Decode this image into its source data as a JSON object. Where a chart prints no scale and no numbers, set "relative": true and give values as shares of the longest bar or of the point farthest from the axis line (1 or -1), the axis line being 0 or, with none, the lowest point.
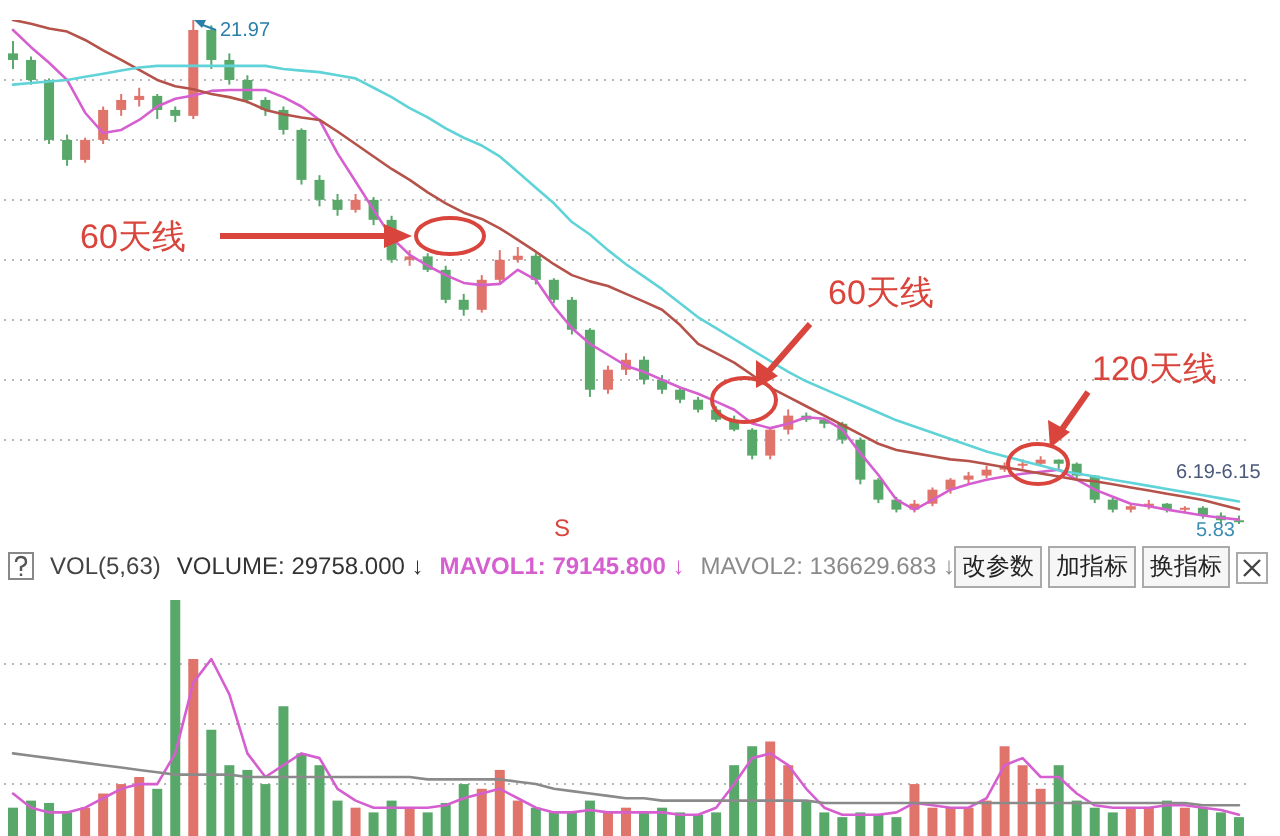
{
  "chart_data": [
    {
      "type": "candlestick",
      "grid": "y",
      "categories": [
        null,
        null,
        null,
        null,
        null,
        null,
        null,
        null,
        null,
        null,
        null,
        null,
        null,
        null,
        null,
        null,
        null,
        null,
        null,
        null,
        null,
        null,
        null,
        null,
        null,
        null,
        null,
        null,
        null,
        null,
        null,
        null,
        null,
        null,
        null,
        null,
        null,
        null,
        null,
        null,
        null,
        null,
        null,
        null,
        null,
        null,
        null,
        null,
        null,
        null,
        null,
        null,
        null,
        null,
        null,
        null,
        null,
        null,
        null,
        null,
        null,
        null,
        null,
        null,
        null,
        null,
        null,
        null,
        null
      ],
      "ohlc": [
        [
          20.9,
          21.3,
          20.4,
          20.69
        ],
        [
          20.69,
          20.8,
          19.9,
          20.05
        ],
        [
          20.05,
          20.1,
          18.0,
          18.13
        ],
        [
          18.13,
          18.3,
          17.3,
          17.49
        ],
        [
          17.49,
          18.2,
          17.4,
          18.13
        ],
        [
          18.13,
          19.2,
          18.0,
          19.09
        ],
        [
          19.09,
          19.6,
          18.9,
          19.41
        ],
        [
          19.41,
          19.8,
          19.2,
          19.54
        ],
        [
          19.54,
          19.6,
          18.8,
          19.09
        ],
        [
          19.09,
          19.2,
          18.7,
          18.9
        ],
        [
          18.9,
          21.97,
          18.8,
          21.65
        ],
        [
          21.65,
          21.8,
          20.4,
          20.69
        ],
        [
          20.69,
          20.9,
          19.9,
          20.05
        ],
        [
          20.05,
          20.2,
          19.3,
          19.41
        ],
        [
          19.41,
          19.5,
          18.9,
          19.09
        ],
        [
          19.09,
          19.2,
          18.3,
          18.45
        ],
        [
          18.45,
          18.5,
          16.7,
          16.85
        ],
        [
          16.85,
          17.0,
          16.0,
          16.21
        ],
        [
          16.21,
          16.4,
          15.7,
          15.89
        ],
        [
          15.89,
          16.4,
          15.8,
          16.21
        ],
        [
          16.21,
          16.3,
          15.4,
          15.57
        ],
        [
          15.57,
          15.7,
          14.2,
          14.29
        ],
        [
          14.29,
          14.6,
          14.1,
          14.4
        ],
        [
          14.4,
          14.5,
          13.9,
          13.97
        ],
        [
          13.97,
          14.1,
          12.9,
          13.01
        ],
        [
          13.01,
          13.2,
          12.5,
          12.69
        ],
        [
          12.69,
          13.8,
          12.6,
          13.65
        ],
        [
          13.65,
          14.6,
          13.5,
          14.29
        ],
        [
          14.29,
          14.7,
          14.2,
          14.42
        ],
        [
          14.42,
          14.5,
          13.5,
          13.65
        ],
        [
          13.65,
          13.7,
          12.9,
          13.01
        ],
        [
          13.01,
          13.1,
          11.9,
          12.05
        ],
        [
          12.05,
          12.1,
          9.9,
          10.13
        ],
        [
          10.13,
          10.9,
          10.0,
          10.77
        ],
        [
          10.77,
          11.3,
          10.6,
          11.09
        ],
        [
          11.09,
          11.2,
          10.3,
          10.45
        ],
        [
          10.45,
          10.6,
          10.0,
          10.13
        ],
        [
          10.13,
          10.2,
          9.7,
          9.81
        ],
        [
          9.81,
          9.9,
          9.4,
          9.49
        ],
        [
          9.49,
          9.6,
          9.1,
          9.17
        ],
        [
          9.17,
          9.3,
          8.8,
          8.85
        ],
        [
          8.85,
          8.9,
          7.9,
          8.02
        ],
        [
          8.02,
          8.9,
          7.9,
          8.85
        ],
        [
          8.85,
          9.5,
          8.7,
          9.3
        ],
        [
          9.3,
          9.4,
          9.1,
          9.17
        ],
        [
          9.17,
          9.2,
          8.9,
          9.04
        ],
        [
          9.04,
          9.1,
          8.4,
          8.53
        ],
        [
          8.53,
          8.6,
          7.1,
          7.25
        ],
        [
          7.25,
          7.3,
          6.5,
          6.61
        ],
        [
          6.61,
          6.7,
          6.2,
          6.29
        ],
        [
          6.29,
          6.6,
          6.2,
          6.48
        ],
        [
          6.48,
          7.0,
          6.4,
          6.93
        ],
        [
          6.93,
          7.3,
          6.8,
          7.25
        ],
        [
          7.25,
          7.5,
          7.1,
          7.38
        ],
        [
          7.38,
          7.7,
          7.3,
          7.57
        ],
        [
          7.57,
          7.8,
          7.5,
          7.7
        ],
        [
          7.7,
          7.9,
          7.6,
          7.76
        ],
        [
          7.76,
          8.0,
          7.7,
          7.89
        ],
        [
          7.89,
          7.9,
          7.6,
          7.76
        ],
        [
          7.76,
          7.8,
          7.3,
          7.38
        ],
        [
          7.38,
          7.4,
          6.5,
          6.61
        ],
        [
          6.61,
          6.7,
          6.2,
          6.29
        ],
        [
          6.29,
          6.5,
          6.2,
          6.4
        ],
        [
          6.4,
          6.6,
          6.3,
          6.48
        ],
        [
          6.48,
          6.5,
          6.2,
          6.29
        ],
        [
          6.29,
          6.4,
          6.2,
          6.35
        ],
        [
          6.35,
          6.4,
          6.0,
          6.1
        ],
        [
          6.1,
          6.2,
          5.85,
          5.95
        ],
        [
          5.95,
          6.1,
          5.83,
          5.9
        ]
      ],
      "colors": [
        "#58a86a",
        "#58a86a",
        "#58a86a",
        "#58a86a",
        "#e0736a",
        "#e0736a",
        "#e0736a",
        "#e0736a",
        "#58a86a",
        "#58a86a",
        "#e0736a",
        "#58a86a",
        "#58a86a",
        "#58a86a",
        "#58a86a",
        "#58a86a",
        "#58a86a",
        "#58a86a",
        "#58a86a",
        "#e0736a",
        "#58a86a",
        "#58a86a",
        "#e0736a",
        "#58a86a",
        "#58a86a",
        "#58a86a",
        "#e0736a",
        "#e0736a",
        "#e0736a",
        "#58a86a",
        "#58a86a",
        "#58a86a",
        "#58a86a",
        "#e0736a",
        "#e0736a",
        "#58a86a",
        "#58a86a",
        "#58a86a",
        "#58a86a",
        "#58a86a",
        "#58a86a",
        "#58a86a",
        "#e0736a",
        "#e0736a",
        "#58a86a",
        "#58a86a",
        "#58a86a",
        "#58a86a",
        "#58a86a",
        "#58a86a",
        "#e0736a",
        "#e0736a",
        "#e0736a",
        "#e0736a",
        "#e0736a",
        "#e0736a",
        "#e0736a",
        "#e0736a",
        "#58a86a",
        "#58a86a",
        "#58a86a",
        "#58a86a",
        "#e0736a",
        "#e0736a",
        "#58a86a",
        "#e0736a",
        "#58a86a",
        "#58a86a",
        "#58a86a"
      ],
      "series": [
        {
          "type": "line",
          "color": "#d65fd0",
          "values": [
            21.65,
            21.1,
            20.6,
            20.05,
            19.0,
            18.35,
            18.45,
            18.77,
            19.2,
            19.45,
            19.55,
            19.7,
            19.73,
            19.73,
            19.73,
            19.5,
            19.2,
            18.77,
            17.7,
            16.8,
            15.89,
            15.0,
            14.45,
            14.1,
            13.8,
            13.55,
            13.48,
            13.52,
            13.97,
            13.65,
            12.8,
            12.1,
            11.6,
            11.25,
            10.9,
            10.7,
            10.45,
            10.2,
            10.0,
            9.75,
            9.49,
            9.05,
            8.9,
            9.04,
            9.25,
            9.2,
            8.85,
            8.1,
            7.4,
            6.61,
            6.29,
            6.6,
            6.93,
            7.1,
            7.25,
            7.35,
            7.44,
            7.5,
            7.57,
            7.25,
            6.93,
            6.7,
            6.48,
            6.4,
            6.29,
            6.2,
            6.1,
            6.03,
            5.97
          ]
        },
        {
          "type": "line",
          "color": "#b5524a",
          "values": [
            21.97,
            21.85,
            21.7,
            21.6,
            21.33,
            21.0,
            20.69,
            20.37,
            20.05,
            19.85,
            19.75,
            19.6,
            19.5,
            19.35,
            19.09,
            18.95,
            18.85,
            18.77,
            18.4,
            18.0,
            17.6,
            17.2,
            16.85,
            16.45,
            16.1,
            15.8,
            15.6,
            15.3,
            14.93,
            14.55,
            14.15,
            13.8,
            13.6,
            13.45,
            13.2,
            12.95,
            12.69,
            12.2,
            11.6,
            11.3,
            11.0,
            10.6,
            10.2,
            9.9,
            9.6,
            9.3,
            9.0,
            8.7,
            8.4,
            8.2,
            8.1,
            8.0,
            7.9,
            7.85,
            7.75,
            7.65,
            7.55,
            7.45,
            7.35,
            7.25,
            7.2,
            7.1,
            7.0,
            6.9,
            6.8,
            6.7,
            6.6,
            6.45,
            6.3
          ]
        },
        {
          "type": "line",
          "color": "#5fd3d8",
          "values": [
            19.9,
            19.95,
            20.0,
            20.05,
            20.15,
            20.25,
            20.35,
            20.45,
            20.5,
            20.5,
            20.5,
            20.5,
            20.5,
            20.5,
            20.5,
            20.4,
            20.35,
            20.3,
            20.2,
            20.1,
            19.8,
            19.5,
            19.15,
            18.85,
            18.5,
            18.2,
            17.95,
            17.6,
            17.1,
            16.6,
            16.1,
            15.5,
            15.1,
            14.6,
            14.15,
            13.75,
            13.35,
            12.9,
            12.45,
            12.1,
            11.75,
            11.4,
            11.05,
            10.7,
            10.4,
            10.15,
            9.9,
            9.65,
            9.4,
            9.15,
            8.95,
            8.75,
            8.55,
            8.35,
            8.15,
            8.0,
            7.85,
            7.7,
            7.55,
            7.45,
            7.35,
            7.25,
            7.15,
            7.05,
            6.95,
            6.85,
            6.75,
            6.65,
            6.55
          ]
        }
      ],
      "annotations": [
        "21.97",
        "5.83",
        "60天线",
        "60天线",
        "120天线",
        "6.19-6.15",
        "S"
      ]
    },
    {
      "type": "bar",
      "relative": true,
      "grid": "y",
      "title": "VOL(5,63)",
      "categories": [
        null,
        null,
        null,
        null,
        null,
        null,
        null,
        null,
        null,
        null,
        null,
        null,
        null,
        null,
        null,
        null,
        null,
        null,
        null,
        null,
        null,
        null,
        null,
        null,
        null,
        null,
        null,
        null,
        null,
        null,
        null,
        null,
        null,
        null,
        null,
        null,
        null,
        null,
        null,
        null,
        null,
        null,
        null,
        null,
        null,
        null,
        null,
        null,
        null,
        null,
        null,
        null,
        null,
        null,
        null,
        null,
        null,
        null,
        null,
        null,
        null,
        null,
        null,
        null,
        null,
        null,
        null,
        null,
        null
      ],
      "series": [
        {
          "type": "bar",
          "colors": [
            "#58a86a",
            "#58a86a",
            "#58a86a",
            "#58a86a",
            "#e0736a",
            "#e0736a",
            "#e0736a",
            "#e0736a",
            "#58a86a",
            "#58a86a",
            "#e0736a",
            "#58a86a",
            "#58a86a",
            "#58a86a",
            "#58a86a",
            "#58a86a",
            "#58a86a",
            "#58a86a",
            "#58a86a",
            "#e0736a",
            "#58a86a",
            "#58a86a",
            "#e0736a",
            "#58a86a",
            "#58a86a",
            "#58a86a",
            "#e0736a",
            "#e0736a",
            "#e0736a",
            "#58a86a",
            "#58a86a",
            "#58a86a",
            "#58a86a",
            "#e0736a",
            "#e0736a",
            "#58a86a",
            "#58a86a",
            "#58a86a",
            "#58a86a",
            "#58a86a",
            "#58a86a",
            "#58a86a",
            "#e0736a",
            "#e0736a",
            "#58a86a",
            "#58a86a",
            "#58a86a",
            "#58a86a",
            "#58a86a",
            "#58a86a",
            "#e0736a",
            "#e0736a",
            "#e0736a",
            "#e0736a",
            "#e0736a",
            "#e0736a",
            "#e0736a",
            "#e0736a",
            "#58a86a",
            "#58a86a",
            "#58a86a",
            "#58a86a",
            "#e0736a",
            "#e0736a",
            "#58a86a",
            "#e0736a",
            "#58a86a",
            "#58a86a",
            "#58a86a"
          ],
          "values": [
            0.12,
            0.15,
            0.14,
            0.1,
            0.12,
            0.18,
            0.22,
            0.25,
            0.2,
            1,
            0.75,
            0.45,
            0.3,
            0.28,
            0.22,
            0.55,
            0.35,
            0.3,
            0.15,
            0.12,
            0.1,
            0.15,
            0.12,
            0.1,
            0.14,
            0.22,
            0.2,
            0.28,
            0.15,
            0.12,
            0.1,
            0.1,
            0.15,
            0.1,
            0.12,
            0.1,
            0.12,
            0.1,
            0.09,
            0.1,
            0.3,
            0.38,
            0.4,
            0.3,
            0.15,
            0.1,
            0.08,
            0.1,
            0.09,
            0.08,
            0.22,
            0.12,
            0.12,
            0.12,
            0.15,
            0.38,
            0.3,
            0.2,
            0.3,
            0.15,
            0.12,
            0.1,
            0.12,
            0.12,
            0.15,
            0.12,
            0.12,
            0.1,
            0.08
          ]
        },
        {
          "type": "line",
          "color": "#d65fd0",
          "values": [
            0.18,
            0.12,
            0.1,
            0.1,
            0.12,
            0.16,
            0.2,
            0.22,
            0.22,
            0.35,
            0.65,
            0.75,
            0.6,
            0.35,
            0.25,
            0.3,
            0.35,
            0.33,
            0.2,
            0.15,
            0.12,
            0.12,
            0.12,
            0.12,
            0.13,
            0.16,
            0.18,
            0.2,
            0.16,
            0.12,
            0.1,
            0.1,
            0.11,
            0.1,
            0.1,
            0.1,
            0.1,
            0.09,
            0.09,
            0.12,
            0.22,
            0.33,
            0.35,
            0.3,
            0.2,
            0.12,
            0.09,
            0.09,
            0.09,
            0.1,
            0.14,
            0.13,
            0.12,
            0.12,
            0.16,
            0.3,
            0.33,
            0.25,
            0.25,
            0.18,
            0.13,
            0.12,
            0.12,
            0.12,
            0.13,
            0.13,
            0.12,
            0.11,
            0.09
          ]
        },
        {
          "type": "line",
          "color": "#8a8a8a",
          "values": [
            0.35,
            0.34,
            0.33,
            0.32,
            0.31,
            0.3,
            0.29,
            0.28,
            0.27,
            0.26,
            0.26,
            0.26,
            0.26,
            0.25,
            0.25,
            0.25,
            0.25,
            0.25,
            0.25,
            0.25,
            0.25,
            0.25,
            0.25,
            0.24,
            0.24,
            0.24,
            0.24,
            0.24,
            0.23,
            0.22,
            0.2,
            0.19,
            0.18,
            0.17,
            0.16,
            0.16,
            0.15,
            0.15,
            0.15,
            0.15,
            0.15,
            0.15,
            0.15,
            0.15,
            0.15,
            0.14,
            0.14,
            0.14,
            0.14,
            0.14,
            0.14,
            0.14,
            0.14,
            0.14,
            0.14,
            0.14,
            0.14,
            0.14,
            0.14,
            0.14,
            0.14,
            0.14,
            0.14,
            0.14,
            0.14,
            0.14,
            0.13,
            0.13,
            0.13
          ]
        }
      ],
      "annotations": [
        "VOLUME: 29758.000 ↓",
        "MAVOL1: 79145.800 ↓",
        "MAVOL2: 136629.683 ↓",
        "改参数",
        "加指标",
        "换指标"
      ]
    }
  ]
}
